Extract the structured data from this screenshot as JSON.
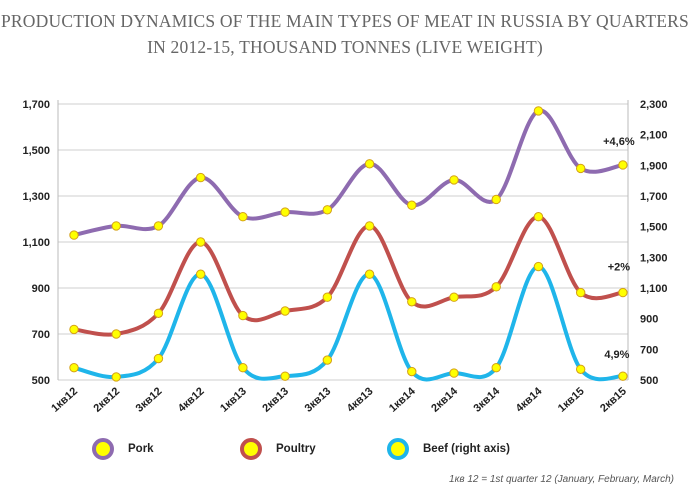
{
  "title": "PRODUCTION DYNAMICS OF THE MAIN TYPES OF MEAT IN RUSSIA BY QUARTERS IN 2012-15, THOUSAND TONNES (LIVE WEIGHT)",
  "footnote": "1кв 12 = 1st quarter 12 (January, February, March)",
  "chart_data": {
    "type": "line",
    "x": [
      "1кв12",
      "2кв12",
      "3кв12",
      "4кв12",
      "1кв13",
      "2кв13",
      "3кв13",
      "4кв13",
      "1кв14",
      "2кв14",
      "3кв14",
      "4кв14",
      "1кв15",
      "2кв15"
    ],
    "y_left": {
      "ticks": [
        "500",
        "700",
        "900",
        "1,100",
        "1,300",
        "1,500",
        "1,700"
      ],
      "range": [
        500,
        1700
      ]
    },
    "y_right": {
      "ticks": [
        "500",
        "700",
        "900",
        "1,100",
        "1,300",
        "1,500",
        "1,700",
        "1,900",
        "2,100",
        "2,300"
      ],
      "range": [
        500,
        2300
      ]
    },
    "grid": true,
    "legend_position": "bottom",
    "series": [
      {
        "name": "Pork",
        "axis": "left",
        "color": "#8e6bb0",
        "values": [
          1130,
          1170,
          1170,
          1380,
          1210,
          1230,
          1240,
          1440,
          1260,
          1370,
          1285,
          1670,
          1420,
          1435
        ]
      },
      {
        "name": "Poultry",
        "axis": "left",
        "color": "#c0504d",
        "values": [
          720,
          700,
          790,
          1100,
          780,
          800,
          860,
          1170,
          840,
          860,
          905,
          1210,
          880,
          880
        ]
      },
      {
        "name": "Beef (right axis)",
        "axis": "right",
        "color": "#1fb5ea",
        "values": [
          580,
          520,
          640,
          1190,
          580,
          525,
          630,
          1190,
          555,
          545,
          580,
          1240,
          570,
          525
        ]
      }
    ],
    "annotations": [
      {
        "text": "+4,6%",
        "series": "Pork",
        "index": 13
      },
      {
        "text": "+2%",
        "series": "Poultry",
        "index": 13
      },
      {
        "text": "4,9%",
        "series": "Beef (right axis)",
        "index": 13
      }
    ]
  }
}
